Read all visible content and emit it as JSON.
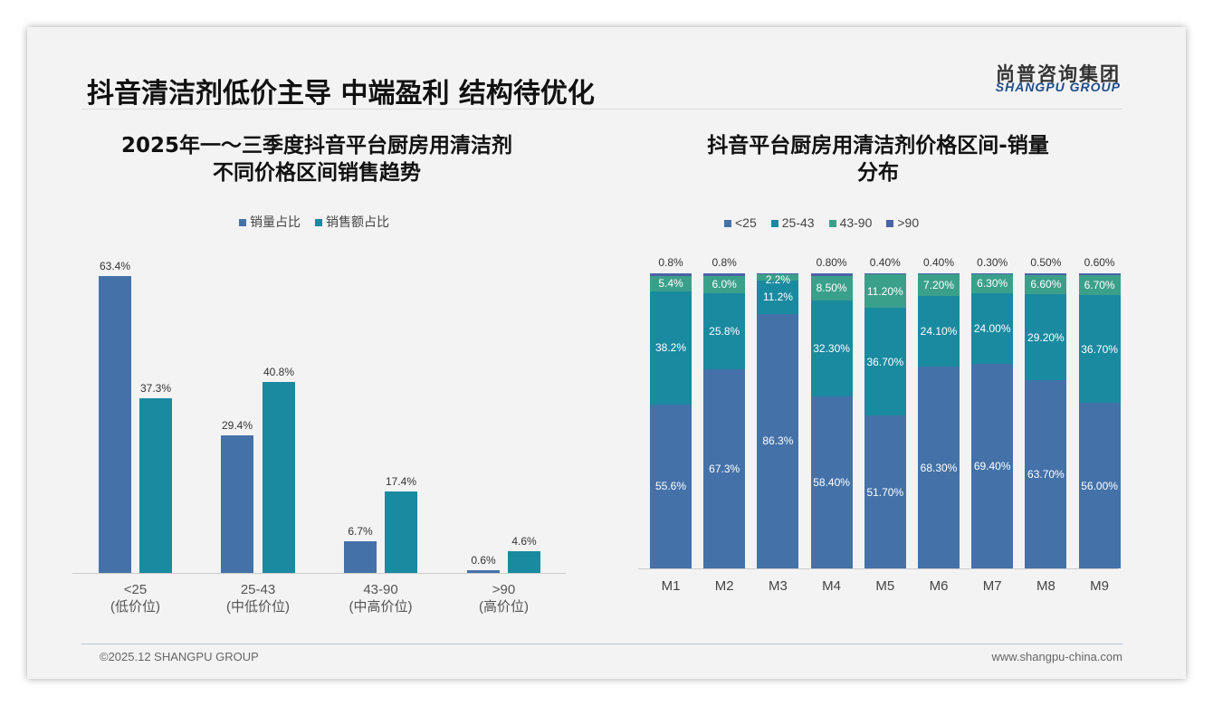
{
  "header": {
    "title": "抖音清洁剂低价主导 中端盈利 结构待优化",
    "logo_cn": "尚普咨询集团",
    "logo_en": "SHANGPU GROUP"
  },
  "footer": {
    "copyright": "©2025.12 SHANGPU GROUP",
    "website": "www.shangpu-china.com"
  },
  "chart_data": [
    {
      "type": "bar",
      "title_line1": "2025年一～三季度抖音平台厨房用清洁剂",
      "title_line2": "不同价格区间销售趋势",
      "categories": [
        "<25",
        "25-43",
        "43-90",
        ">90"
      ],
      "category_sublabels": [
        "(低价位)",
        "(中低价位)",
        "(中高价位)",
        "(高价位)"
      ],
      "series": [
        {
          "name": "销量占比",
          "color": "#4472a8",
          "values": [
            63.4,
            29.4,
            6.7,
            0.6
          ],
          "labels": [
            "63.4%",
            "29.4%",
            "6.7%",
            "0.6%"
          ]
        },
        {
          "name": "销售额占比",
          "color": "#1a8aa0",
          "values": [
            37.3,
            40.8,
            17.4,
            4.6
          ],
          "labels": [
            "37.3%",
            "40.8%",
            "17.4%",
            "4.6%"
          ]
        }
      ],
      "ylim": [
        0,
        70
      ]
    },
    {
      "type": "bar",
      "stacked": true,
      "title_line1": "抖音平台厨房用清洁剂价格区间-销量",
      "title_line2": "分布",
      "categories": [
        "M1",
        "M2",
        "M3",
        "M4",
        "M5",
        "M6",
        "M7",
        "M8",
        "M9"
      ],
      "series": [
        {
          "name": "<25",
          "color": "#4472a8",
          "values": [
            55.6,
            67.3,
            86.3,
            58.4,
            51.7,
            68.3,
            69.4,
            63.7,
            56.0
          ],
          "labels": [
            "55.6%",
            "67.3%",
            "86.3%",
            "58.40%",
            "51.70%",
            "68.30%",
            "69.40%",
            "63.70%",
            "56.00%"
          ]
        },
        {
          "name": "25-43",
          "color": "#1a8aa0",
          "values": [
            38.2,
            25.8,
            11.2,
            32.3,
            36.7,
            24.1,
            24.0,
            29.2,
            36.7
          ],
          "labels": [
            "38.2%",
            "25.8%",
            "11.2%",
            "32.30%",
            "36.70%",
            "24.10%",
            "24.00%",
            "29.20%",
            "36.70%"
          ]
        },
        {
          "name": "43-90",
          "color": "#3ba08a",
          "values": [
            5.4,
            6.0,
            2.2,
            8.5,
            11.2,
            7.2,
            6.3,
            6.6,
            6.7
          ],
          "labels": [
            "5.4%",
            "6.0%",
            "2.2%",
            "8.50%",
            "11.20%",
            "7.20%",
            "6.30%",
            "6.60%",
            "6.70%"
          ]
        },
        {
          "name": ">90",
          "color": "#4a62a8",
          "values": [
            0.8,
            0.8,
            0.3,
            0.8,
            0.4,
            0.4,
            0.3,
            0.5,
            0.6
          ],
          "labels": [
            "0.8%",
            "0.8%",
            "",
            "0.80%",
            "0.40%",
            "0.40%",
            "0.30%",
            "0.50%",
            "0.60%"
          ]
        }
      ],
      "ylim": [
        0,
        100
      ]
    }
  ]
}
